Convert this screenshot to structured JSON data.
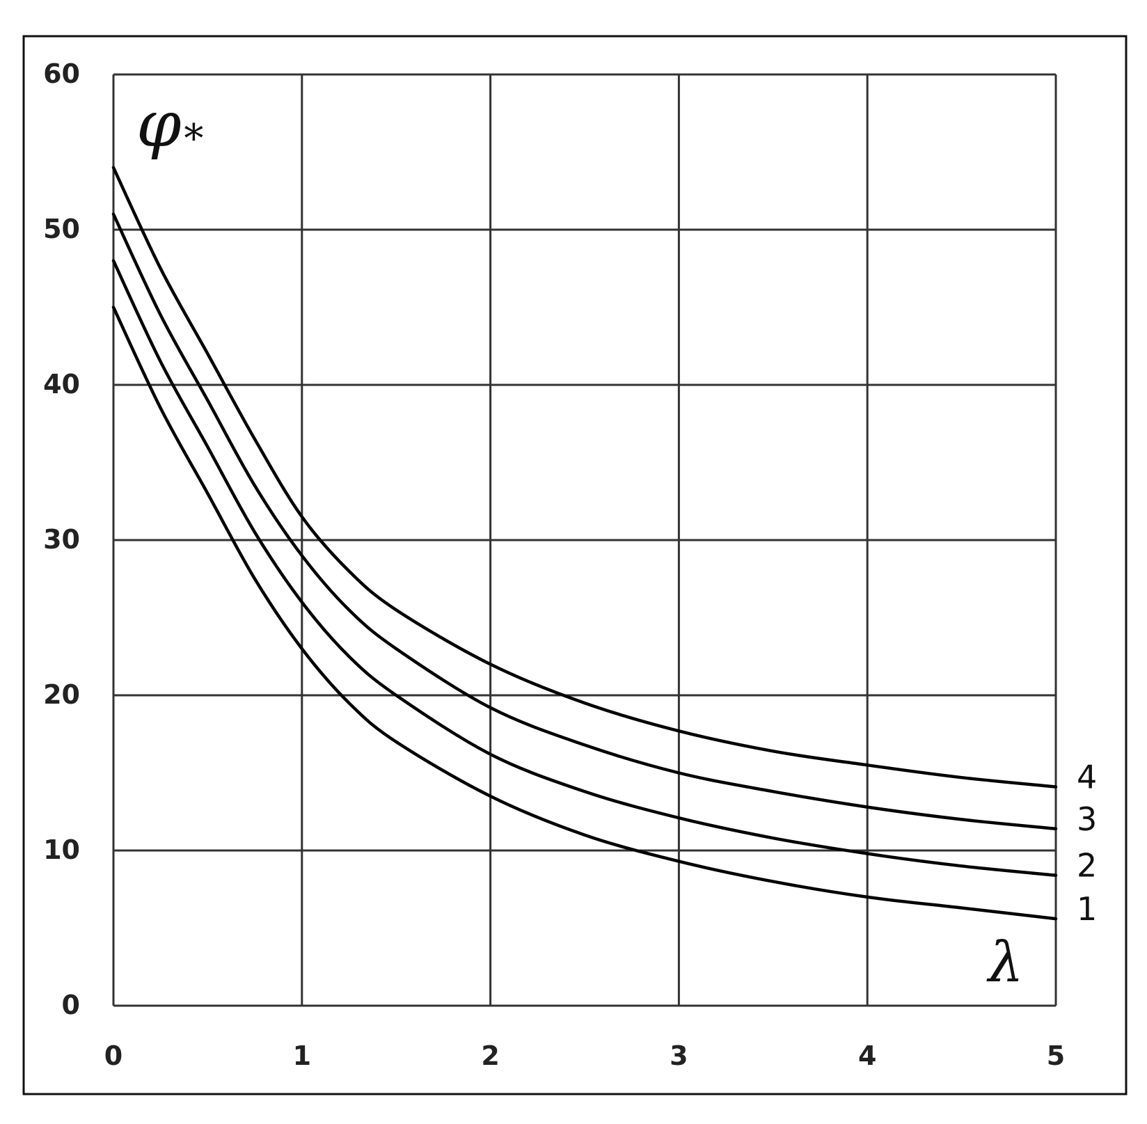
{
  "chart_data": {
    "type": "line",
    "title": "",
    "xlabel": "λ",
    "ylabel": "φ*",
    "ylabel_main": "φ",
    "ylabel_sub": "*",
    "xlim": [
      0,
      5
    ],
    "ylim": [
      0,
      60
    ],
    "x_ticks": [
      "0",
      "1",
      "2",
      "3",
      "4",
      "5"
    ],
    "y_ticks": [
      "0",
      "10",
      "20",
      "30",
      "40",
      "50",
      "60"
    ],
    "grid": true,
    "legend": "none",
    "series": [
      {
        "name": "1",
        "x": [
          0,
          0.25,
          0.5,
          0.75,
          1,
          1.25,
          1.5,
          2,
          2.5,
          3,
          3.5,
          4,
          4.5,
          5
        ],
        "values": [
          45,
          38.5,
          33,
          27.5,
          23,
          19.5,
          17,
          13.5,
          11,
          9.3,
          8,
          7,
          6.3,
          5.6
        ]
      },
      {
        "name": "2",
        "x": [
          0,
          0.25,
          0.5,
          0.75,
          1,
          1.25,
          1.5,
          2,
          2.5,
          3,
          3.5,
          4,
          4.5,
          5
        ],
        "values": [
          48,
          41.5,
          36,
          30.5,
          26,
          22.5,
          20,
          16.2,
          13.8,
          12.1,
          10.8,
          9.8,
          9.0,
          8.4
        ]
      },
      {
        "name": "3",
        "x": [
          0,
          0.25,
          0.5,
          0.75,
          1,
          1.25,
          1.5,
          2,
          2.5,
          3,
          3.5,
          4,
          4.5,
          5
        ],
        "values": [
          51,
          44.5,
          39,
          33.5,
          29,
          25.5,
          23,
          19.2,
          16.8,
          15.0,
          13.8,
          12.8,
          12.0,
          11.4
        ]
      },
      {
        "name": "4",
        "x": [
          0,
          0.25,
          0.5,
          0.75,
          1,
          1.25,
          1.5,
          2,
          2.5,
          3,
          3.5,
          4,
          4.5,
          5
        ],
        "values": [
          54,
          47.5,
          42,
          36.5,
          31.5,
          28,
          25.5,
          22,
          19.5,
          17.7,
          16.4,
          15.5,
          14.7,
          14.1
        ]
      }
    ]
  }
}
